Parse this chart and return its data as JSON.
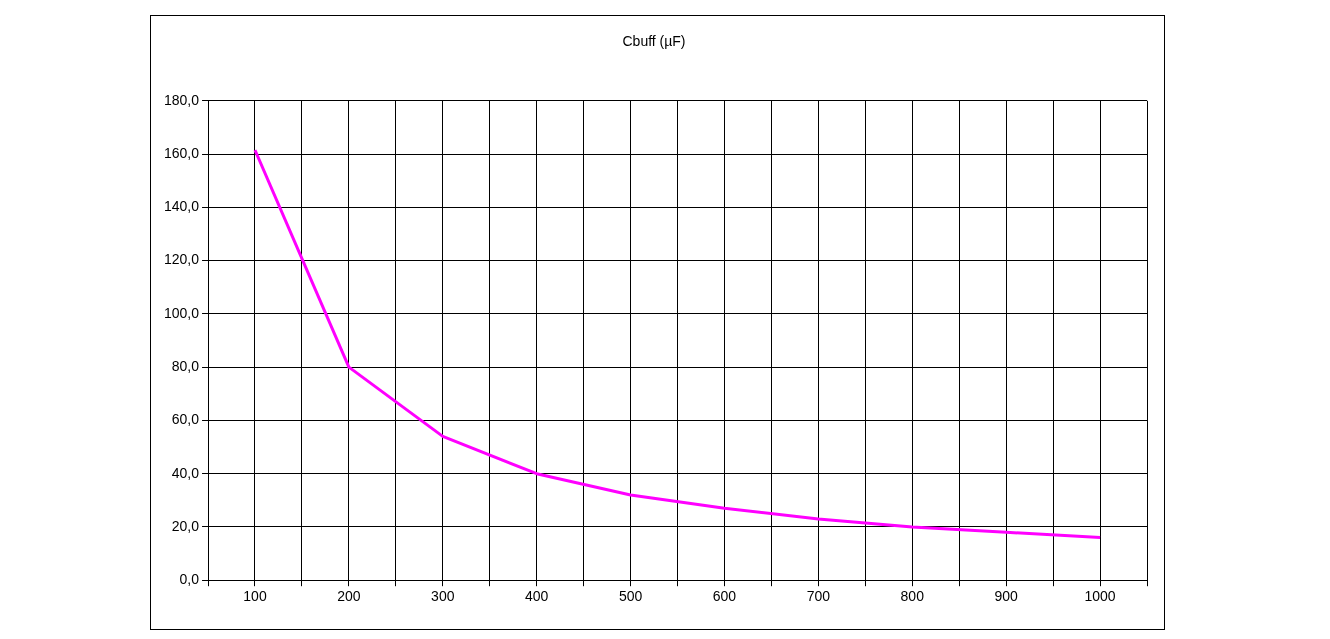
{
  "chart_data": {
    "type": "line",
    "title": "Cbuff (µF)",
    "x": [
      100,
      200,
      300,
      400,
      500,
      600,
      700,
      800,
      900,
      1000
    ],
    "series": [
      {
        "color": "#ff00ff",
        "values": [
          161.5,
          80,
          54,
          40,
          32,
          27,
          23,
          20,
          18,
          16
        ]
      }
    ],
    "xlim": [
      50,
      1050
    ],
    "xticks": [
      {
        "value": 50,
        "label": null
      },
      100,
      {
        "value": 150,
        "label": null
      },
      200,
      {
        "value": 250,
        "label": null
      },
      300,
      {
        "value": 350,
        "label": null
      },
      400,
      {
        "value": 450,
        "label": null
      },
      500,
      {
        "value": 550,
        "label": null
      },
      600,
      {
        "value": 650,
        "label": null
      },
      700,
      {
        "value": 750,
        "label": null
      },
      800,
      {
        "value": 850,
        "label": null
      },
      900,
      {
        "value": 950,
        "label": null
      },
      1000,
      {
        "value": 1050,
        "label": null
      }
    ],
    "ylim": [
      0,
      180
    ],
    "yticks": [
      {
        "value": 0,
        "label": "0,0"
      },
      {
        "value": 20,
        "label": "20,0"
      },
      {
        "value": 40,
        "label": "40,0"
      },
      {
        "value": 60,
        "label": "60,0"
      },
      {
        "value": 80,
        "label": "80,0"
      },
      {
        "value": 100,
        "label": "100,0"
      },
      {
        "value": 120,
        "label": "120,0"
      },
      {
        "value": 140,
        "label": "140,0"
      },
      {
        "value": 160,
        "label": "160,0"
      },
      {
        "value": 180,
        "label": "180,0"
      }
    ],
    "grid": true,
    "legend": false,
    "marker": "none",
    "line_style": "solid"
  }
}
